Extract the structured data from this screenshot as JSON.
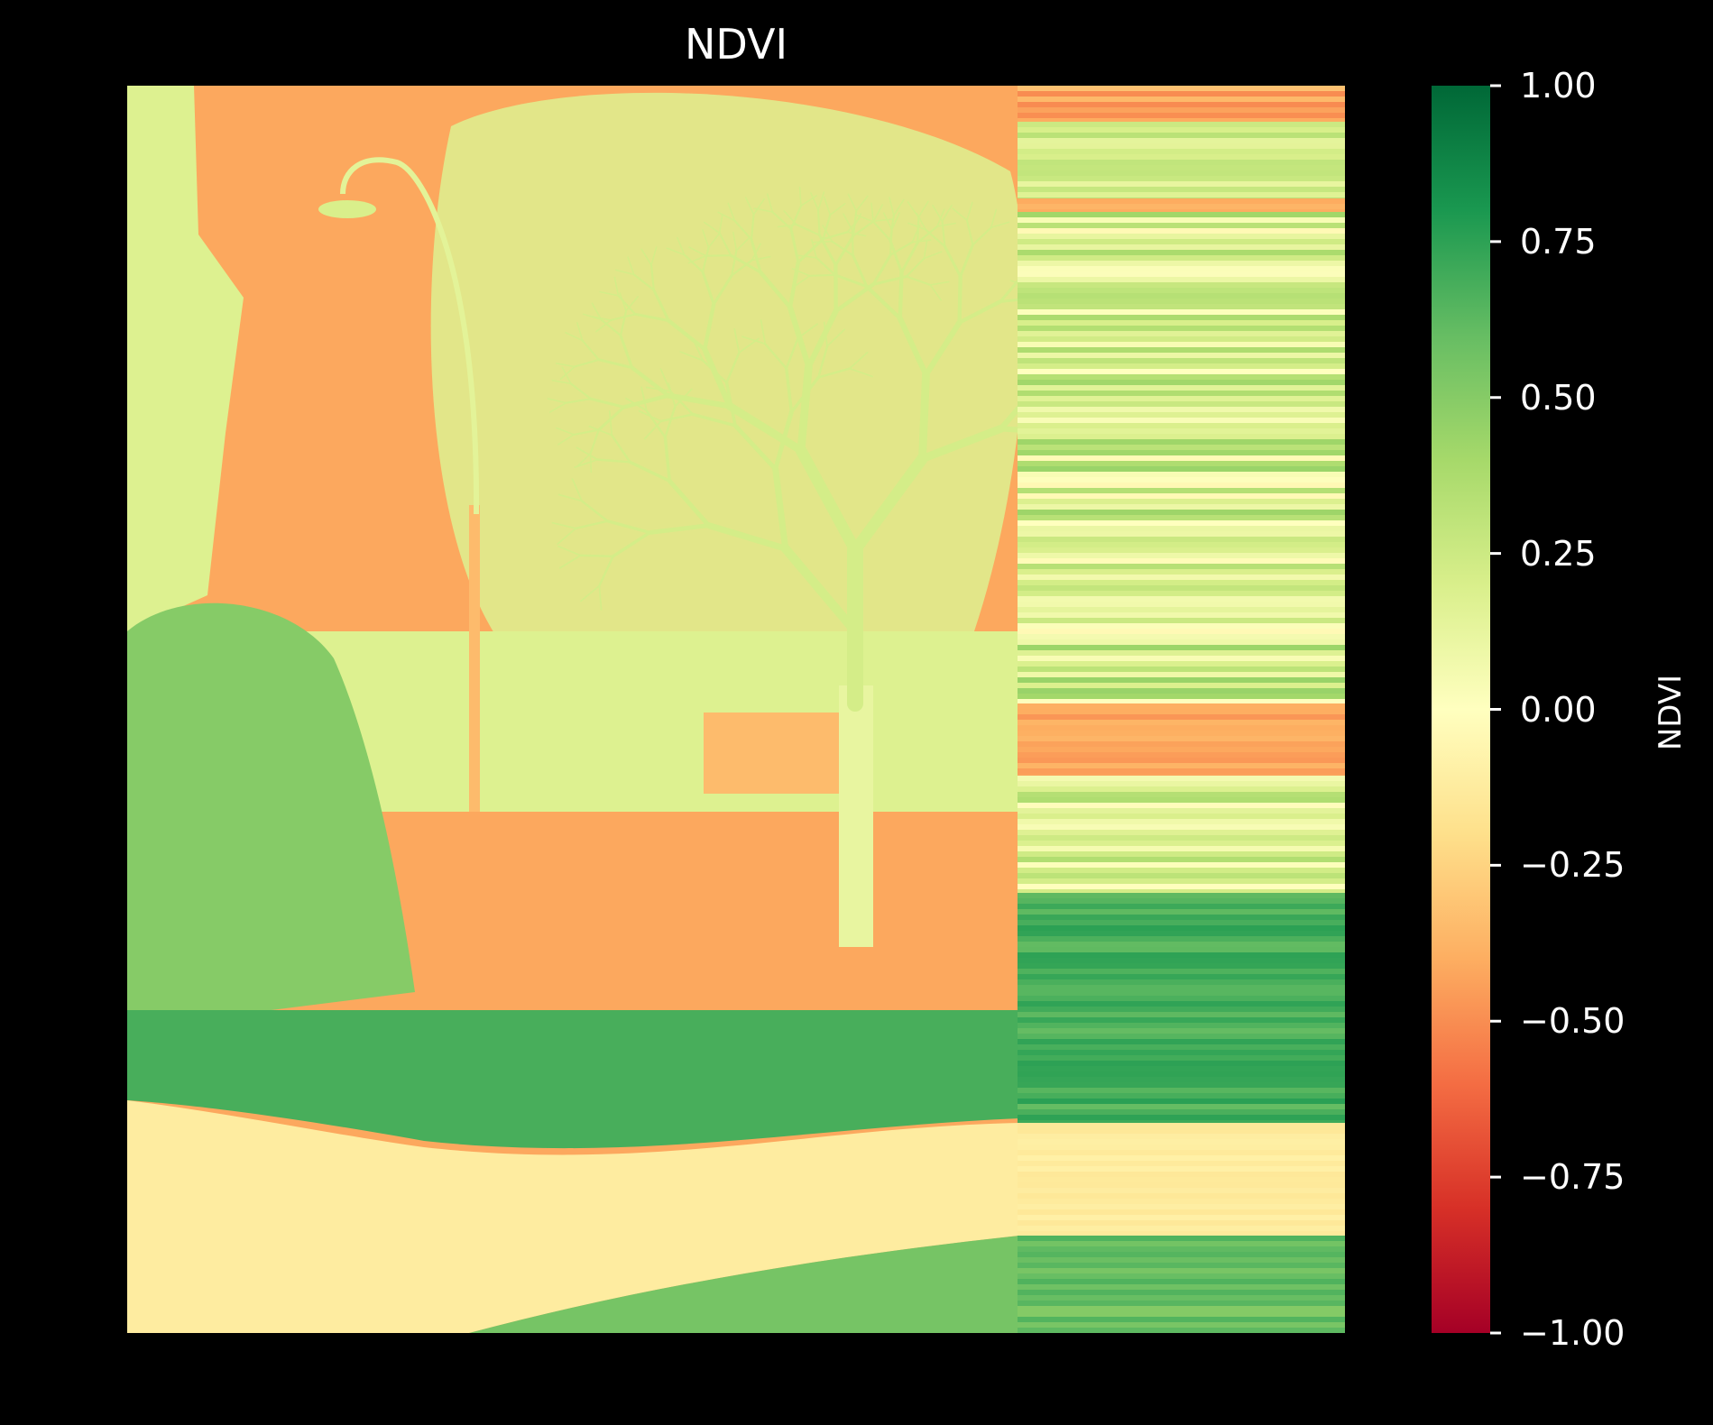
{
  "chart_data": {
    "type": "heatmap",
    "title": "NDVI",
    "colorbar": {
      "label": "NDVI",
      "colormap": "RdYlGn",
      "range": [
        -1.0,
        1.0
      ],
      "ticks": [
        1.0,
        0.75,
        0.5,
        0.25,
        0.0,
        -0.25,
        -0.5,
        -0.75,
        -1.0
      ],
      "tick_labels": [
        "1.00",
        "0.75",
        "0.50",
        "0.25",
        "0.00",
        "−0.25",
        "−0.50",
        "−0.75",
        "−1.00"
      ],
      "colors": [
        "#a50026",
        "#d73027",
        "#f46d43",
        "#fdae61",
        "#fee08b",
        "#ffffbf",
        "#d9ef8b",
        "#a6d96a",
        "#66bd63",
        "#1a9850",
        "#006837"
      ]
    },
    "image_content": "NDVI false-colour rendering of a park scene: bare tree, lamp post, shrubs, lawn and footpath; right portion shows horizontal banding",
    "regions_ndvi": {
      "sky": -0.42,
      "tree_branches": 0.18,
      "shrubs": 0.5,
      "lawn": 0.68,
      "path": -0.12,
      "buildings": -0.35
    },
    "axes_visible": false,
    "background": "#000000"
  }
}
